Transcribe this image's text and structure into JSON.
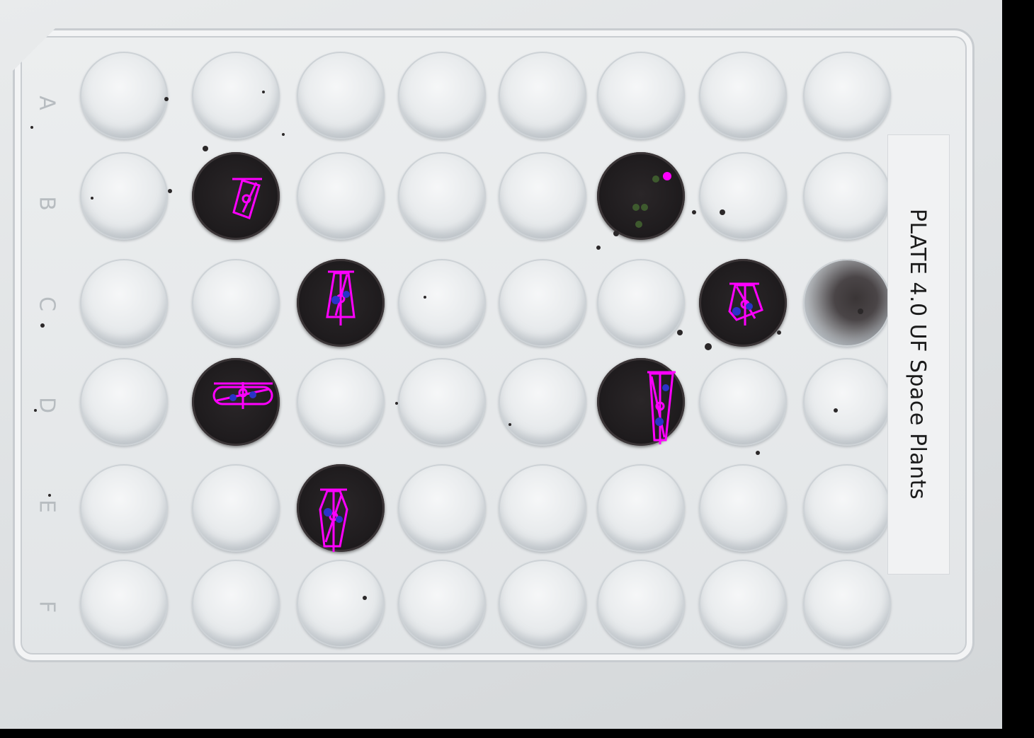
{
  "plate_label": "PLATE 4.0 UF Space Plants",
  "row_letters": [
    "A",
    "B",
    "C",
    "D",
    "E",
    "F"
  ],
  "overlay_color": "#ff00ff",
  "marker_color": "#2a33c8"
}
